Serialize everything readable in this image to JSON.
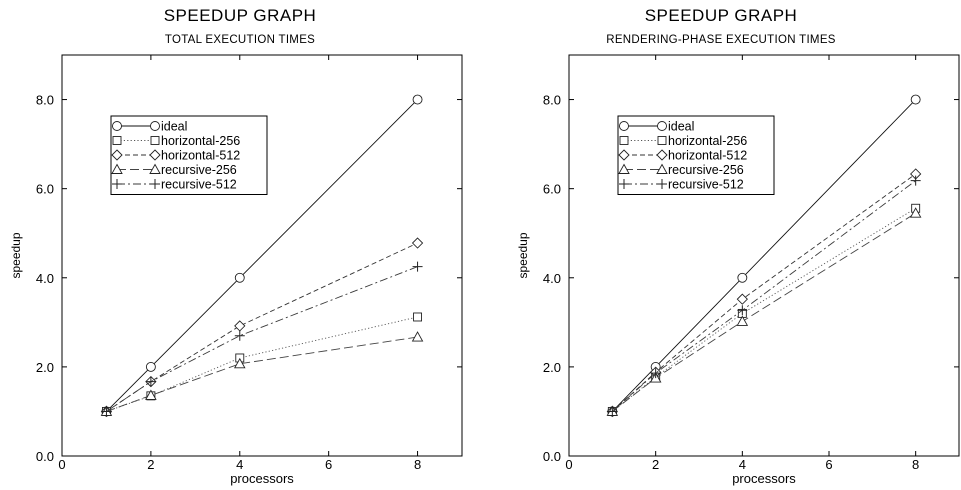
{
  "chart_data": [
    {
      "type": "line",
      "title": "SPEEDUP GRAPH",
      "subtitle": "TOTAL EXECUTION TIMES",
      "xlabel": "processors",
      "ylabel": "speedup",
      "xlim": [
        0,
        9
      ],
      "ylim": [
        0,
        9
      ],
      "xticks": [
        0,
        2,
        4,
        6,
        8
      ],
      "xtick_labels": [
        "0",
        "2",
        "4",
        "6",
        "8"
      ],
      "yticks": [
        0,
        2,
        4,
        6,
        8
      ],
      "ytick_labels": [
        "0.0",
        "2.0",
        "4.0",
        "6.0",
        "8.0"
      ],
      "grid": false,
      "legend_position": "top-left",
      "x": [
        1,
        2,
        4,
        8
      ],
      "series": [
        {
          "name": "ideal",
          "marker": "circle",
          "dash": "solid",
          "values": [
            1.0,
            2.0,
            4.0,
            8.0
          ]
        },
        {
          "name": "horizontal-256",
          "marker": "square",
          "dash": "dotted",
          "values": [
            1.0,
            1.35,
            2.2,
            3.12
          ]
        },
        {
          "name": "horizontal-512",
          "marker": "diamond",
          "dash": "dashed",
          "values": [
            1.0,
            1.67,
            2.92,
            4.78
          ]
        },
        {
          "name": "recursive-256",
          "marker": "triangle",
          "dash": "longdash",
          "values": [
            1.0,
            1.36,
            2.07,
            2.67
          ]
        },
        {
          "name": "recursive-512",
          "marker": "plus",
          "dash": "dashdot",
          "values": [
            1.0,
            1.67,
            2.7,
            4.25
          ]
        }
      ]
    },
    {
      "type": "line",
      "title": "SPEEDUP GRAPH",
      "subtitle": "RENDERING-PHASE EXECUTION TIMES",
      "xlabel": "processors",
      "ylabel": "speedup",
      "xlim": [
        0,
        9
      ],
      "ylim": [
        0,
        9
      ],
      "xticks": [
        0,
        2,
        4,
        6,
        8
      ],
      "xtick_labels": [
        "0",
        "2",
        "4",
        "6",
        "8"
      ],
      "yticks": [
        0,
        2,
        4,
        6,
        8
      ],
      "ytick_labels": [
        "0.0",
        "2.0",
        "4.0",
        "6.0",
        "8.0"
      ],
      "grid": false,
      "legend_position": "top-left",
      "x": [
        1,
        2,
        4,
        8
      ],
      "series": [
        {
          "name": "ideal",
          "marker": "circle",
          "dash": "solid",
          "values": [
            1.0,
            2.0,
            4.0,
            8.0
          ]
        },
        {
          "name": "horizontal-256",
          "marker": "square",
          "dash": "dotted",
          "values": [
            1.0,
            1.77,
            3.2,
            5.56
          ]
        },
        {
          "name": "horizontal-512",
          "marker": "diamond",
          "dash": "dashed",
          "values": [
            1.0,
            1.88,
            3.52,
            6.33
          ]
        },
        {
          "name": "recursive-256",
          "marker": "triangle",
          "dash": "longdash",
          "values": [
            1.0,
            1.75,
            3.02,
            5.45
          ]
        },
        {
          "name": "recursive-512",
          "marker": "plus",
          "dash": "dashdot",
          "values": [
            1.0,
            1.86,
            3.27,
            6.18
          ]
        }
      ]
    }
  ]
}
